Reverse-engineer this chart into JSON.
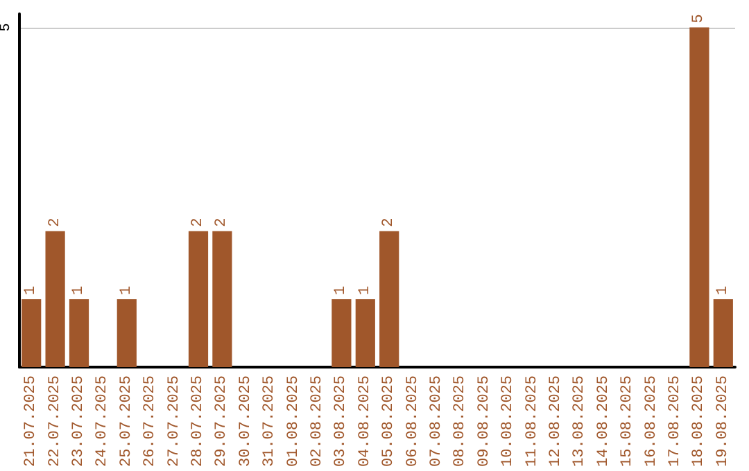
{
  "chart_data": {
    "type": "bar",
    "categories": [
      "21.07.2025",
      "22.07.2025",
      "23.07.2025",
      "24.07.2025",
      "25.07.2025",
      "26.07.2025",
      "27.07.2025",
      "28.07.2025",
      "29.07.2025",
      "30.07.2025",
      "31.07.2025",
      "01.08.2025",
      "02.08.2025",
      "03.08.2025",
      "04.08.2025",
      "05.08.2025",
      "06.08.2025",
      "07.08.2025",
      "08.08.2025",
      "09.08.2025",
      "10.08.2025",
      "11.08.2025",
      "12.08.2025",
      "13.08.2025",
      "14.08.2025",
      "15.08.2025",
      "16.08.2025",
      "17.08.2025",
      "18.08.2025",
      "19.08.2025"
    ],
    "values": [
      1,
      2,
      1,
      0,
      1,
      0,
      0,
      2,
      2,
      0,
      0,
      0,
      0,
      1,
      1,
      2,
      0,
      0,
      0,
      0,
      0,
      0,
      0,
      0,
      0,
      0,
      0,
      0,
      5,
      1
    ],
    "value_labels": [
      "1",
      "2",
      "1",
      null,
      "1",
      null,
      null,
      "2",
      "2",
      null,
      null,
      null,
      null,
      "1",
      "1",
      "2",
      null,
      null,
      null,
      null,
      null,
      null,
      null,
      null,
      null,
      null,
      null,
      null,
      "5",
      "1"
    ],
    "color": "#a0572b",
    "ylim": [
      0,
      5.2
    ],
    "yticks": [
      5
    ],
    "grid": "y"
  }
}
